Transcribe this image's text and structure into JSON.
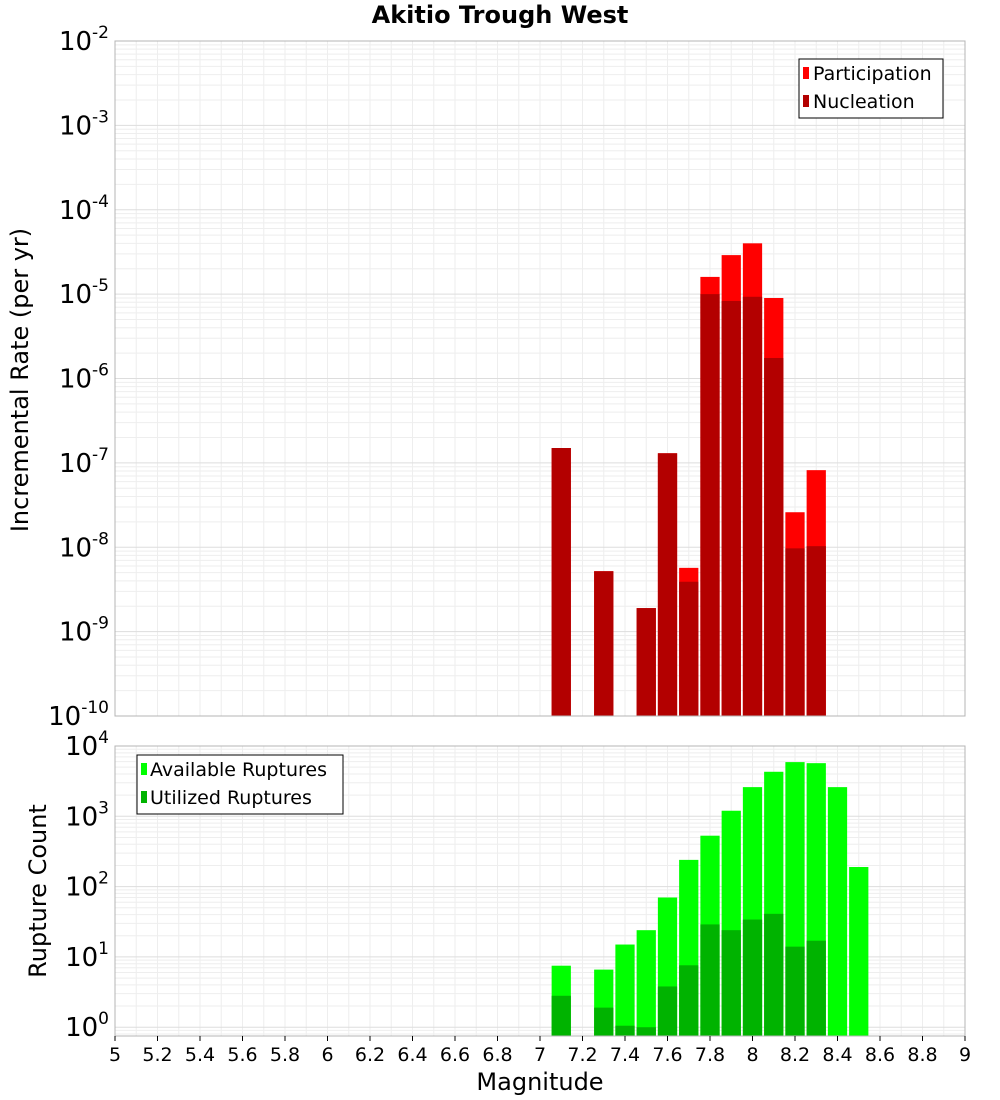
{
  "chart_data": {
    "title": "Akitio Trough West",
    "xlabel": "Magnitude",
    "x_ticks": [
      "5",
      "5.2",
      "5.4",
      "5.6",
      "5.8",
      "6",
      "6.2",
      "6.4",
      "6.6",
      "6.8",
      "7",
      "7.2",
      "7.4",
      "7.6",
      "7.8",
      "8",
      "8.2",
      "8.4",
      "8.6",
      "8.8",
      "9"
    ],
    "xlim": [
      5,
      9
    ],
    "bin_width": 0.1,
    "panels": [
      {
        "type": "bar",
        "scale": "log",
        "ylabel": "Incremental Rate (per yr)",
        "ylim": [
          1e-10,
          0.01
        ],
        "y_tick_exponents": [
          -10,
          -9,
          -8,
          -7,
          -6,
          -5,
          -4,
          -3,
          -2
        ],
        "grid": true,
        "legend_position": "top-right",
        "series": [
          {
            "name": "Participation",
            "color": "#ff0000",
            "x": [
              7.1,
              7.3,
              7.5,
              7.6,
              7.7,
              7.8,
              7.9,
              8.0,
              8.1,
              8.2,
              8.3
            ],
            "values": [
              1.5e-07,
              5.2e-09,
              1.9e-09,
              1.3e-07,
              5.7e-09,
              1.6e-05,
              2.9e-05,
              4e-05,
              9e-06,
              2.6e-08,
              8.2e-08
            ]
          },
          {
            "name": "Nucleation",
            "color": "#b30000",
            "x": [
              7.1,
              7.3,
              7.5,
              7.6,
              7.7,
              7.8,
              7.9,
              8.0,
              8.1,
              8.2,
              8.3
            ],
            "values": [
              1.5e-07,
              5.2e-09,
              1.9e-09,
              1.3e-07,
              3.9e-09,
              1e-05,
              8.3e-06,
              9.3e-06,
              1.75e-06,
              9.7e-09,
              1.03e-08
            ]
          }
        ]
      },
      {
        "type": "bar",
        "scale": "log",
        "ylabel": "Rupture Count",
        "ylim": [
          0.75,
          10000
        ],
        "y_tick_exponents": [
          0,
          1,
          2,
          3,
          4
        ],
        "grid": true,
        "legend_position": "top-left",
        "series": [
          {
            "name": "Available Ruptures",
            "color": "#00ff00",
            "x": [
              7.1,
              7.3,
              7.4,
              7.5,
              7.6,
              7.7,
              7.8,
              7.9,
              8.0,
              8.1,
              8.2,
              8.3,
              8.4,
              8.5
            ],
            "values": [
              7.5,
              6.6,
              15,
              24,
              70,
              240,
              530,
              1200,
              2600,
              4300,
              5900,
              5700,
              2600,
              190
            ]
          },
          {
            "name": "Utilized Ruptures",
            "color": "#00b300",
            "x": [
              7.1,
              7.3,
              7.4,
              7.5,
              7.6,
              7.7,
              7.8,
              7.9,
              8.0,
              8.1,
              8.2,
              8.3
            ],
            "values": [
              2.8,
              1.9,
              1.05,
              1.0,
              3.8,
              7.6,
              29,
              24,
              34,
              41,
              14,
              17
            ]
          }
        ]
      }
    ]
  }
}
